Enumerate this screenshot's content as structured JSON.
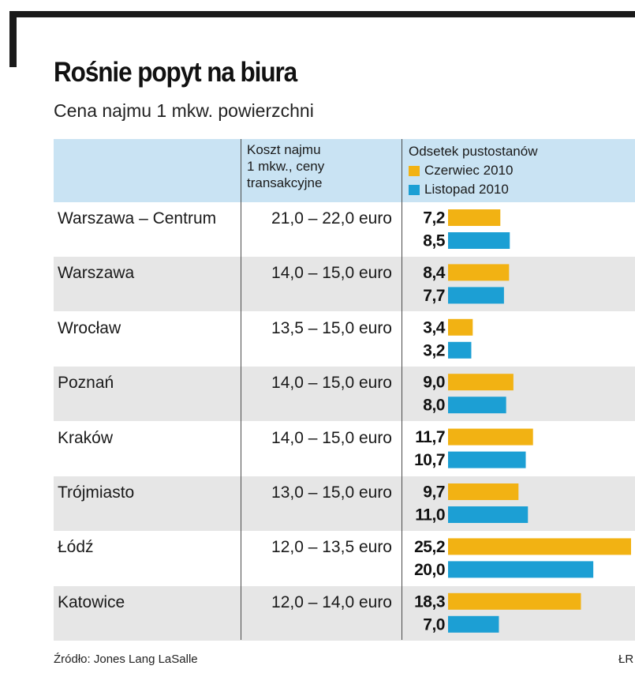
{
  "header": {
    "title": "Rośnie popyt na biura",
    "subtitle": "Cena najmu 1 mkw. powierzchni"
  },
  "table": {
    "col_cost_header": [
      "Koszt  najmu",
      "1 mkw., ceny",
      "transakcyjne"
    ],
    "col_vacancy_header": "Odsetek pustostanów"
  },
  "colors": {
    "series_june": "#f2b213",
    "series_november": "#1c9fd4",
    "header_band": "#c9e3f3",
    "row_band": "#e6e6e6"
  },
  "chart_data": {
    "type": "bar",
    "orientation": "horizontal",
    "categories": [
      "Warszawa – Centrum",
      "Warszawa",
      "Wrocław",
      "Poznań",
      "Kraków",
      "Trójmiasto",
      "Łódź",
      "Katowice"
    ],
    "prices": [
      "21,0 – 22,0 euro",
      "14,0 – 15,0 euro",
      "13,5 – 15,0 euro",
      "14,0 – 15,0 euro",
      "14,0 – 15,0 euro",
      "13,0 – 15,0 euro",
      "12,0 – 13,5 euro",
      "12,0 – 14,0 euro"
    ],
    "series": [
      {
        "name": "Czerwiec 2010",
        "values": [
          7.2,
          8.4,
          3.4,
          9.0,
          11.7,
          9.7,
          25.2,
          18.3
        ],
        "labels": [
          "7,2",
          "8,4",
          "3,4",
          "9,0",
          "11,7",
          "9,7",
          "25,2",
          "18,3"
        ]
      },
      {
        "name": "Listopad 2010",
        "values": [
          8.5,
          7.7,
          3.2,
          8.0,
          10.7,
          11.0,
          20.0,
          7.0
        ],
        "labels": [
          "8,5",
          "7,7",
          "3,2",
          "8,0",
          "10,7",
          "11,0",
          "20,0",
          "7,0"
        ]
      }
    ],
    "xlim": [
      0,
      25.2
    ],
    "grid": false,
    "legend_position": "top"
  },
  "footer": {
    "source": "Źródło: Jones Lang LaSalle",
    "credit": "ŁR"
  }
}
